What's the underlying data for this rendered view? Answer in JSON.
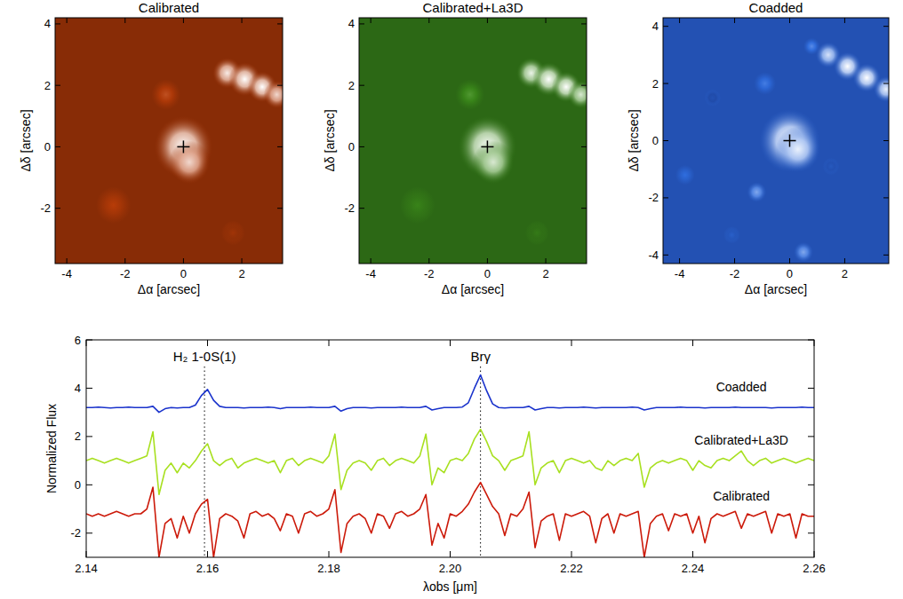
{
  "chart_data": [
    {
      "type": "image",
      "title": "Calibrated",
      "x_label": "Δα [arcsec]",
      "y_label": "Δδ [arcsec]",
      "xlim": [
        -4.4,
        3.4
      ],
      "ylim": [
        -3.8,
        4.2
      ],
      "xticks": [
        -4,
        -2,
        0,
        2
      ],
      "yticks": [
        -2,
        0,
        2,
        4
      ],
      "color": "#b83c08",
      "sources": [
        {
          "x": 0,
          "y": 0,
          "r": 1.0,
          "intensity": 1.0
        },
        {
          "x": 0.2,
          "y": -0.5,
          "r": 0.7,
          "intensity": 0.9
        },
        {
          "x": 1.5,
          "y": 2.4,
          "r": 0.5,
          "intensity": 0.95
        },
        {
          "x": 2.1,
          "y": 2.2,
          "r": 0.55,
          "intensity": 1.0
        },
        {
          "x": 2.7,
          "y": 1.95,
          "r": 0.5,
          "intensity": 1.0
        },
        {
          "x": 3.2,
          "y": 1.7,
          "r": 0.45,
          "intensity": 0.9
        },
        {
          "x": -0.6,
          "y": 1.7,
          "r": 0.5,
          "intensity": 0.55
        },
        {
          "x": -2.4,
          "y": -1.9,
          "r": 0.6,
          "intensity": 0.5
        },
        {
          "x": 1.7,
          "y": -2.8,
          "r": 0.4,
          "intensity": 0.4
        }
      ],
      "cross": {
        "x": 0,
        "y": 0
      }
    },
    {
      "type": "image",
      "title": "Calibrated+La3D",
      "x_label": "Δα [arcsec]",
      "y_label": "Δδ [arcsec]",
      "xlim": [
        -4.4,
        3.4
      ],
      "ylim": [
        -3.8,
        4.2
      ],
      "xticks": [
        -4,
        -2,
        0,
        2
      ],
      "yticks": [
        -2,
        0,
        2,
        4
      ],
      "color": "#3c8c1a",
      "sources": [
        {
          "x": 0,
          "y": 0,
          "r": 1.0,
          "intensity": 1.0
        },
        {
          "x": 0.2,
          "y": -0.5,
          "r": 0.7,
          "intensity": 0.9
        },
        {
          "x": 1.5,
          "y": 2.4,
          "r": 0.5,
          "intensity": 0.95
        },
        {
          "x": 2.1,
          "y": 2.2,
          "r": 0.55,
          "intensity": 1.0
        },
        {
          "x": 2.7,
          "y": 1.95,
          "r": 0.5,
          "intensity": 1.0
        },
        {
          "x": 3.2,
          "y": 1.7,
          "r": 0.45,
          "intensity": 0.9
        },
        {
          "x": -0.6,
          "y": 1.7,
          "r": 0.5,
          "intensity": 0.55
        },
        {
          "x": -2.4,
          "y": -1.9,
          "r": 0.6,
          "intensity": 0.45
        },
        {
          "x": 1.7,
          "y": -2.8,
          "r": 0.4,
          "intensity": 0.4
        }
      ],
      "cross": {
        "x": 0,
        "y": 0
      }
    },
    {
      "type": "image",
      "title": "Coadded",
      "x_label": "Δα [arcsec]",
      "y_label": "Δδ [arcsec]",
      "xlim": [
        -4.6,
        3.6
      ],
      "ylim": [
        -4.3,
        4.3
      ],
      "xticks": [
        -4,
        -2,
        0,
        2
      ],
      "yticks": [
        -4,
        -2,
        0,
        2,
        4
      ],
      "color": "#2f6ee0",
      "sources": [
        {
          "x": 0,
          "y": 0,
          "r": 1.1,
          "intensity": 1.0
        },
        {
          "x": 0.3,
          "y": -0.3,
          "r": 0.8,
          "intensity": 0.95
        },
        {
          "x": 1.4,
          "y": 3.0,
          "r": 0.45,
          "intensity": 0.9
        },
        {
          "x": 2.1,
          "y": 2.6,
          "r": 0.5,
          "intensity": 1.0
        },
        {
          "x": 2.8,
          "y": 2.2,
          "r": 0.5,
          "intensity": 1.0
        },
        {
          "x": 3.5,
          "y": 1.8,
          "r": 0.45,
          "intensity": 0.95
        },
        {
          "x": 0.8,
          "y": 3.3,
          "r": 0.3,
          "intensity": 0.6
        },
        {
          "x": -0.9,
          "y": 2.0,
          "r": 0.4,
          "intensity": 0.55
        },
        {
          "x": -1.2,
          "y": -1.8,
          "r": 0.35,
          "intensity": 0.7
        },
        {
          "x": -3.8,
          "y": -1.2,
          "r": 0.35,
          "intensity": 0.5
        },
        {
          "x": 0.5,
          "y": -3.9,
          "r": 0.35,
          "intensity": 0.7
        },
        {
          "x": -2.1,
          "y": -3.3,
          "r": 0.3,
          "intensity": 0.4
        },
        {
          "x": 1.5,
          "y": -0.9,
          "r": 0.3,
          "intensity": 0.35
        },
        {
          "x": -2.8,
          "y": 1.5,
          "r": 0.3,
          "intensity": 0.3
        }
      ],
      "cross": {
        "x": 0,
        "y": 0
      }
    },
    {
      "type": "line",
      "x_label": "λobs [μm]",
      "y_label": "Normalized Flux",
      "xlim": [
        2.14,
        2.26
      ],
      "ylim": [
        -3,
        6
      ],
      "xticks": [
        2.14,
        2.16,
        2.18,
        {
          "value": 2.2,
          "label": "2.20"
        },
        2.22,
        2.24,
        2.26
      ],
      "yticks": [
        -2,
        0,
        2,
        4,
        6
      ],
      "annotations": [
        {
          "text": "H₂ 1-0S(1)",
          "x": 2.1595
        },
        {
          "text": "Brγ",
          "x": 2.205
        }
      ],
      "x": [
        2.14,
        2.141,
        2.142,
        2.143,
        2.144,
        2.145,
        2.146,
        2.147,
        2.148,
        2.149,
        2.15,
        2.151,
        2.152,
        2.153,
        2.154,
        2.155,
        2.156,
        2.157,
        2.158,
        2.159,
        2.16,
        2.161,
        2.162,
        2.163,
        2.164,
        2.165,
        2.166,
        2.167,
        2.168,
        2.169,
        2.17,
        2.171,
        2.172,
        2.173,
        2.174,
        2.175,
        2.176,
        2.177,
        2.178,
        2.179,
        2.18,
        2.181,
        2.182,
        2.183,
        2.184,
        2.185,
        2.186,
        2.187,
        2.188,
        2.189,
        2.19,
        2.191,
        2.192,
        2.193,
        2.194,
        2.195,
        2.196,
        2.197,
        2.198,
        2.199,
        2.2,
        2.201,
        2.202,
        2.203,
        2.204,
        2.205,
        2.206,
        2.207,
        2.208,
        2.209,
        2.21,
        2.211,
        2.212,
        2.213,
        2.214,
        2.215,
        2.216,
        2.217,
        2.218,
        2.219,
        2.22,
        2.221,
        2.222,
        2.223,
        2.224,
        2.225,
        2.226,
        2.227,
        2.228,
        2.229,
        2.23,
        2.231,
        2.232,
        2.233,
        2.234,
        2.235,
        2.236,
        2.237,
        2.238,
        2.239,
        2.24,
        2.241,
        2.242,
        2.243,
        2.244,
        2.245,
        2.246,
        2.247,
        2.248,
        2.249,
        2.25,
        2.251,
        2.252,
        2.253,
        2.254,
        2.255,
        2.256,
        2.257,
        2.258,
        2.259,
        2.26
      ],
      "series": [
        {
          "name": "Coadded",
          "color": "#1a33cc",
          "values": [
            3.2,
            3.2,
            3.22,
            3.2,
            3.18,
            3.2,
            3.2,
            3.22,
            3.2,
            3.2,
            3.2,
            3.25,
            3.0,
            3.15,
            3.2,
            3.18,
            3.2,
            3.2,
            3.3,
            3.7,
            3.95,
            3.5,
            3.25,
            3.2,
            3.2,
            3.2,
            3.18,
            3.2,
            3.2,
            3.2,
            3.22,
            3.2,
            3.15,
            3.2,
            3.2,
            3.2,
            3.2,
            3.22,
            3.2,
            3.2,
            3.2,
            3.25,
            3.05,
            3.15,
            3.2,
            3.2,
            3.2,
            3.18,
            3.2,
            3.2,
            3.2,
            3.2,
            3.22,
            3.2,
            3.2,
            3.2,
            3.25,
            3.1,
            3.15,
            3.2,
            3.2,
            3.2,
            3.22,
            3.4,
            4.0,
            4.55,
            3.9,
            3.35,
            3.2,
            3.18,
            3.2,
            3.2,
            3.2,
            3.25,
            3.1,
            3.15,
            3.2,
            3.2,
            3.18,
            3.2,
            3.2,
            3.2,
            3.22,
            3.2,
            3.18,
            3.2,
            3.2,
            3.2,
            3.2,
            3.2,
            3.22,
            3.2,
            3.1,
            3.15,
            3.2,
            3.2,
            3.2,
            3.2,
            3.22,
            3.2,
            3.2,
            3.2,
            3.18,
            3.2,
            3.2,
            3.2,
            3.2,
            3.22,
            3.2,
            3.2,
            3.2,
            3.2,
            3.2,
            3.18,
            3.2,
            3.2,
            3.2,
            3.2,
            3.22,
            3.2,
            3.2
          ]
        },
        {
          "name": "Calibrated+La3D",
          "color": "#a8e020",
          "values": [
            1.0,
            1.1,
            1.0,
            0.9,
            1.0,
            1.1,
            1.0,
            0.9,
            1.0,
            1.1,
            1.2,
            2.2,
            -0.4,
            0.6,
            0.9,
            0.5,
            0.9,
            0.7,
            1.0,
            1.4,
            1.7,
            1.0,
            0.8,
            1.0,
            1.1,
            0.7,
            0.9,
            1.0,
            1.1,
            1.0,
            0.9,
            1.0,
            0.5,
            1.0,
            1.1,
            0.8,
            1.0,
            1.1,
            1.0,
            0.9,
            1.2,
            2.1,
            -0.2,
            0.6,
            0.9,
            1.0,
            0.9,
            0.6,
            1.0,
            1.1,
            0.8,
            1.0,
            1.1,
            1.0,
            0.9,
            1.2,
            2.1,
            0.0,
            0.7,
            0.5,
            1.0,
            1.1,
            1.0,
            1.3,
            1.9,
            2.3,
            1.8,
            1.2,
            1.0,
            0.6,
            1.0,
            1.1,
            1.2,
            2.2,
            0.0,
            0.7,
            0.9,
            1.0,
            0.5,
            1.0,
            1.1,
            1.0,
            0.9,
            1.0,
            0.7,
            0.6,
            1.0,
            0.8,
            1.0,
            1.1,
            1.0,
            1.3,
            -0.1,
            0.7,
            0.9,
            1.0,
            0.9,
            1.0,
            1.1,
            1.0,
            0.6,
            1.0,
            0.8,
            0.7,
            1.0,
            1.1,
            1.0,
            1.2,
            1.4,
            1.0,
            0.8,
            1.0,
            1.1,
            0.9,
            1.0,
            1.1,
            1.0,
            0.9,
            1.0,
            1.1,
            1.0
          ]
        },
        {
          "name": "Calibrated",
          "color": "#cc1a0a",
          "values": [
            -1.2,
            -1.3,
            -1.2,
            -1.3,
            -1.2,
            -1.1,
            -1.2,
            -1.3,
            -1.2,
            -1.2,
            -1.0,
            -0.1,
            -3.0,
            -1.6,
            -1.4,
            -2.2,
            -1.3,
            -2.0,
            -1.2,
            -0.8,
            -0.6,
            -3.0,
            -1.4,
            -1.2,
            -1.3,
            -1.5,
            -2.2,
            -1.2,
            -1.1,
            -1.3,
            -1.2,
            -1.4,
            -1.9,
            -1.2,
            -1.3,
            -2.0,
            -1.2,
            -1.1,
            -1.3,
            -1.2,
            -1.0,
            -0.2,
            -2.8,
            -1.6,
            -1.3,
            -1.2,
            -1.4,
            -2.0,
            -1.2,
            -1.3,
            -1.8,
            -1.2,
            -1.1,
            -1.3,
            -1.2,
            -1.0,
            -0.4,
            -2.5,
            -1.6,
            -2.2,
            -1.2,
            -1.3,
            -1.1,
            -0.8,
            -0.3,
            0.1,
            -0.4,
            -0.9,
            -1.2,
            -2.1,
            -1.2,
            -1.3,
            -1.0,
            -0.3,
            -2.6,
            -1.5,
            -1.3,
            -1.2,
            -2.3,
            -1.2,
            -1.3,
            -1.2,
            -1.1,
            -1.3,
            -2.4,
            -1.4,
            -1.2,
            -2.0,
            -1.2,
            -1.3,
            -1.2,
            -1.1,
            -3.0,
            -1.6,
            -1.3,
            -1.2,
            -1.9,
            -1.2,
            -1.3,
            -1.2,
            -2.0,
            -1.3,
            -2.4,
            -1.4,
            -1.2,
            -1.3,
            -1.2,
            -1.1,
            -1.8,
            -1.2,
            -1.3,
            -1.2,
            -1.1,
            -2.0,
            -1.2,
            -1.3,
            -1.2,
            -2.2,
            -1.2,
            -1.3,
            -1.3
          ]
        }
      ]
    }
  ]
}
